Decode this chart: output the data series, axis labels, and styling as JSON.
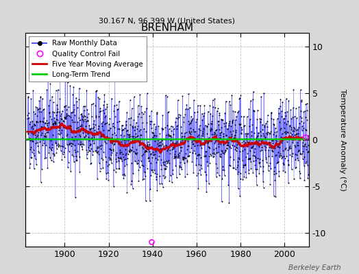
{
  "title": "BRENHAM",
  "subtitle": "30.167 N, 96.399 W (United States)",
  "ylabel": "Temperature Anomaly (°C)",
  "watermark": "Berkeley Earth",
  "year_start": 1883,
  "year_end": 2011,
  "ylim": [
    -11.5,
    11.5
  ],
  "yticks": [
    -10,
    -5,
    0,
    5,
    10
  ],
  "xticks": [
    1900,
    1920,
    1940,
    1960,
    1980,
    2000
  ],
  "fig_bg_color": "#d8d8d8",
  "plot_bg_color": "#ffffff",
  "raw_line_color": "#5555ff",
  "raw_dot_color": "#000000",
  "moving_avg_color": "#cc0000",
  "trend_color": "#00cc00",
  "qc_fail_color": "#ff00ff",
  "grid_color": "#bbbbbb",
  "seed": 42,
  "noise_std": 2.2,
  "qc_year": 1939.5,
  "qc_value": -11.0,
  "qc2_year": 2009.5,
  "qc2_value": 0.3
}
